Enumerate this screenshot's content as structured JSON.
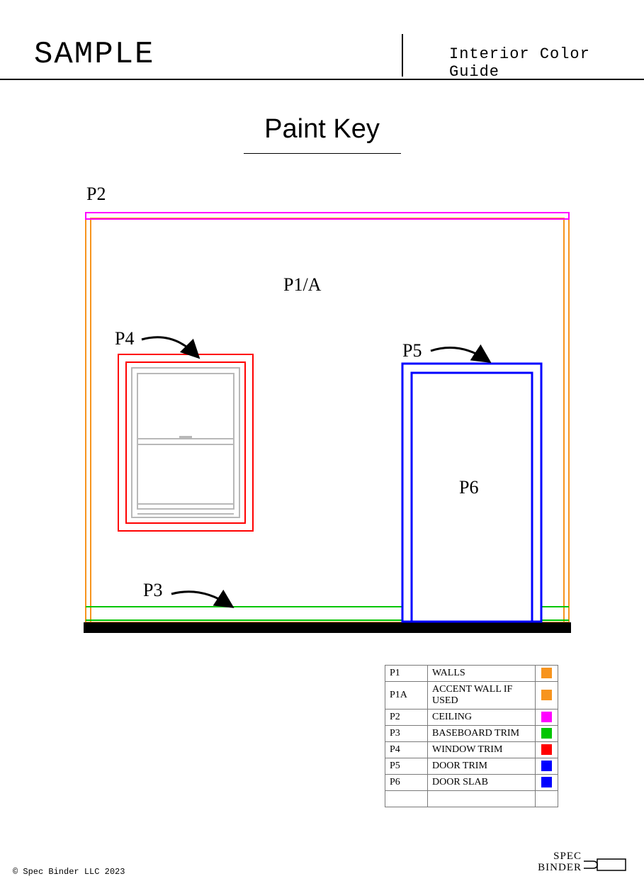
{
  "header": {
    "left_title": "SAMPLE",
    "right_title": "Interior Color Guide"
  },
  "page_title": "Paint Key",
  "diagram": {
    "type": "labeled-elevation-drawing",
    "background_color": "#ffffff",
    "floor_color": "#000000",
    "wall_outline_color": "#f7941e",
    "ceiling_color": "#ff00ff",
    "baseboard_color": "#00c600",
    "window_trim_outer_color": "#ff0000",
    "window_trim_inner_color": "#ff0000",
    "window_sash_color": "#b8b8b8",
    "door_trim_color": "#0000ff",
    "labels": {
      "p1a": "P1/A",
      "p2": "P2",
      "p3": "P3",
      "p4": "P4",
      "p5": "P5",
      "p6": "P6"
    },
    "label_fontsize": 26
  },
  "legend": {
    "columns": [
      "code",
      "description",
      "color"
    ],
    "rows": [
      {
        "code": "P1",
        "desc": "WALLS",
        "color": "#f7941e"
      },
      {
        "code": "P1A",
        "desc": "ACCENT WALL IF USED",
        "color": "#f7941e"
      },
      {
        "code": "P2",
        "desc": "CEILING",
        "color": "#ff00ff"
      },
      {
        "code": "P3",
        "desc": "BASEBOARD TRIM",
        "color": "#00c600"
      },
      {
        "code": "P4",
        "desc": "WINDOW TRIM",
        "color": "#ff0000"
      },
      {
        "code": "P5",
        "desc": "DOOR TRIM",
        "color": "#0000ff"
      },
      {
        "code": "P6",
        "desc": "DOOR SLAB",
        "color": "#0000ff"
      },
      {
        "code": "",
        "desc": "",
        "color": ""
      }
    ],
    "border_color": "#7a7a7a",
    "fontsize": 14
  },
  "footer": {
    "copyright": "© Spec Binder LLC 2023",
    "logo_line1": "SPEC",
    "logo_line2": "BINDER"
  }
}
